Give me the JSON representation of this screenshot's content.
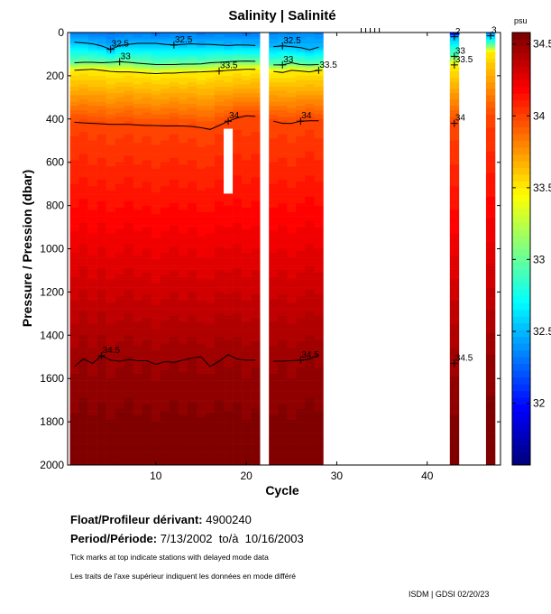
{
  "chart_data": {
    "type": "heatmap",
    "title": "Salinity | Salinité",
    "xlabel": "Cycle",
    "ylabel": "Pressure / Pression (dbar)",
    "xlim": [
      0.25,
      48.1
    ],
    "ylim": [
      0,
      2000
    ],
    "x_ticks": [
      10,
      20,
      30,
      40
    ],
    "y_ticks": [
      0,
      200,
      400,
      600,
      800,
      1000,
      1200,
      1400,
      1600,
      1800,
      2000
    ],
    "colorbar": {
      "unit": "psu",
      "range": [
        31.57,
        34.58
      ],
      "ticks": [
        32,
        32.5,
        33,
        33.5,
        34,
        34.5
      ],
      "colormap": "jet"
    },
    "contour_levels": [
      32.5,
      33,
      33.5,
      34,
      34.5
    ],
    "deep_value": 34.62,
    "delayed_mode_ticks": [
      32.7,
      33.2,
      33.7,
      34.2,
      34.7
    ],
    "missing_segments": [
      {
        "cycle": 18,
        "from": 445,
        "to": 745
      }
    ],
    "groups": [
      {
        "cycles": [
          1,
          2,
          3,
          4,
          5,
          6,
          7,
          8,
          9,
          10,
          11,
          12,
          13,
          14,
          15,
          16,
          17,
          18,
          19,
          20,
          21
        ],
        "surface": 32.3,
        "contours": [
          [
            45,
            48,
            52,
            62,
            78,
            60,
            55,
            50,
            50,
            50,
            55,
            58,
            55,
            52,
            55,
            55,
            58,
            60,
            58,
            58,
            60
          ],
          [
            140,
            138,
            138,
            140,
            138,
            135,
            138,
            142,
            145,
            148,
            148,
            148,
            146,
            146,
            145,
            140,
            138,
            135,
            133,
            132,
            133
          ],
          [
            175,
            172,
            170,
            175,
            180,
            182,
            182,
            185,
            188,
            190,
            188,
            188,
            185,
            183,
            182,
            180,
            178,
            175,
            172,
            170,
            170
          ],
          [
            415,
            418,
            420,
            422,
            425,
            425,
            425,
            428,
            430,
            430,
            432,
            432,
            432,
            435,
            440,
            448,
            430,
            410,
            395,
            385,
            388
          ],
          [
            1545,
            1510,
            1530,
            1495,
            1515,
            1520,
            1512,
            1518,
            1518,
            1535,
            1522,
            1525,
            1515,
            1505,
            1500,
            1545,
            1520,
            1490,
            1510,
            1515,
            1515
          ]
        ],
        "labels": [
          [
            "32.5",
            5
          ],
          [
            "32.5",
            12
          ],
          [
            "33",
            6
          ],
          [
            "33.5",
            17
          ],
          [
            "34",
            18
          ],
          [
            "34.5",
            4
          ]
        ]
      },
      {
        "cycles": [
          23,
          24,
          25,
          26,
          27,
          28
        ],
        "surface": 32.35,
        "contours": [
          [
            65,
            62,
            65,
            70,
            80,
            68
          ],
          [
            150,
            150,
            140,
            148,
            150,
            148
          ],
          [
            180,
            185,
            175,
            178,
            182,
            175
          ],
          [
            410,
            420,
            420,
            410,
            408,
            408
          ],
          [
            1520,
            1520,
            1518,
            1515,
            1510,
            1490
          ]
        ],
        "labels": [
          [
            "32.5",
            24
          ],
          [
            "33",
            24
          ],
          [
            "33.5",
            28
          ],
          [
            "34",
            26
          ],
          [
            "34.5",
            26
          ]
        ]
      },
      {
        "cycles": [
          43
        ],
        "surface": 31.75,
        "contours": [
          [
            20
          ],
          [
            110
          ],
          [
            150
          ],
          [
            420
          ],
          [
            1530
          ]
        ],
        "labels": [
          [
            "2",
            43
          ],
          [
            "33",
            43
          ],
          [
            "33.5",
            43
          ],
          [
            "34",
            43
          ],
          [
            "34.5",
            43
          ]
        ]
      },
      {
        "cycles": [
          47
        ],
        "surface": 32.3,
        "contours": [
          [
            15
          ],
          [
            60
          ],
          [
            90
          ],
          [
            400
          ],
          [
            1500
          ]
        ],
        "labels": [
          [
            "3",
            47
          ]
        ]
      }
    ]
  },
  "info": {
    "float_label": "Float/Profileur dérivant:",
    "float_value": "4900240",
    "period_label": "Period/Période:",
    "period_value": "7/13/2002  to/à  10/16/2003",
    "note_en": "Tick marks at top indicate stations with delayed mode data",
    "note_fr": "Les traits de l'axe supérieur indiquent les données en mode différé",
    "credit": "ISDM | GDSI 02/20/23"
  }
}
